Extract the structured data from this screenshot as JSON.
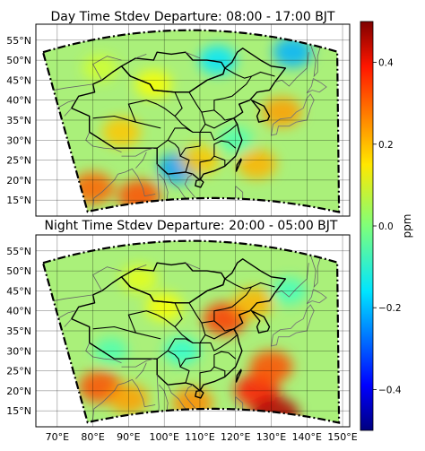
{
  "chart_data": [
    {
      "type": "heatmap",
      "title": "Day Time Stdev Departure: 08:00 - 17:00 BJT",
      "ytick_labels": [
        "15°N",
        "20°N",
        "25°N",
        "30°N",
        "35°N",
        "40°N",
        "45°N",
        "50°N",
        "55°N"
      ],
      "ylim": [
        11,
        59
      ],
      "grid": true,
      "hotspots": [
        {
          "lon": 80,
          "lat": 18,
          "value": 0.28
        },
        {
          "lon": 93,
          "lat": 16,
          "value": 0.3
        },
        {
          "lon": 104,
          "lat": 23,
          "value": -0.22
        },
        {
          "lon": 110,
          "lat": 25,
          "value": 0.18
        },
        {
          "lon": 88,
          "lat": 32,
          "value": 0.18
        },
        {
          "lon": 126,
          "lat": 24,
          "value": 0.2
        },
        {
          "lon": 133,
          "lat": 37,
          "value": 0.22
        },
        {
          "lon": 97,
          "lat": 44,
          "value": 0.12
        },
        {
          "lon": 82,
          "lat": 48,
          "value": 0.08
        },
        {
          "lon": 136,
          "lat": 52,
          "value": -0.2
        },
        {
          "lon": 115,
          "lat": 50,
          "value": -0.15
        },
        {
          "lon": 120,
          "lat": 30,
          "value": -0.05
        }
      ]
    },
    {
      "type": "heatmap",
      "title": "Night Time Stdev Departure: 20:00 - 05:00 BJT",
      "xtick_labels": [
        "70°E",
        "80°E",
        "90°E",
        "100°E",
        "110°E",
        "120°E",
        "130°E",
        "140°E",
        "150°E"
      ],
      "ytick_labels": [
        "15°N",
        "20°N",
        "25°N",
        "30°N",
        "35°N",
        "40°N",
        "45°N",
        "50°N",
        "55°N"
      ],
      "xlim": [
        64,
        152
      ],
      "ylim": [
        11,
        59
      ],
      "grid": true,
      "hotspots": [
        {
          "lon": 82,
          "lat": 21,
          "value": 0.3
        },
        {
          "lon": 90,
          "lat": 18,
          "value": 0.22
        },
        {
          "lon": 108,
          "lat": 17,
          "value": 0.24
        },
        {
          "lon": 126,
          "lat": 20,
          "value": 0.35
        },
        {
          "lon": 131,
          "lat": 14,
          "value": 0.45
        },
        {
          "lon": 130,
          "lat": 26,
          "value": 0.3
        },
        {
          "lon": 117,
          "lat": 38,
          "value": 0.32
        },
        {
          "lon": 125,
          "lat": 42,
          "value": 0.2
        },
        {
          "lon": 100,
          "lat": 41,
          "value": 0.12
        },
        {
          "lon": 93,
          "lat": 48,
          "value": 0.1
        },
        {
          "lon": 85,
          "lat": 30,
          "value": -0.05
        },
        {
          "lon": 105,
          "lat": 30,
          "value": -0.08
        },
        {
          "lon": 135,
          "lat": 45,
          "value": -0.06
        }
      ]
    }
  ],
  "colorbar": {
    "label": "ppm",
    "range": [
      -0.5,
      0.5
    ],
    "ticks": [
      0.4,
      0.2,
      0.0,
      -0.2,
      -0.4
    ],
    "tick_labels": [
      "0.4",
      "0.2",
      "0.0",
      "−0.2",
      "−0.4"
    ],
    "colormap": "jet"
  }
}
